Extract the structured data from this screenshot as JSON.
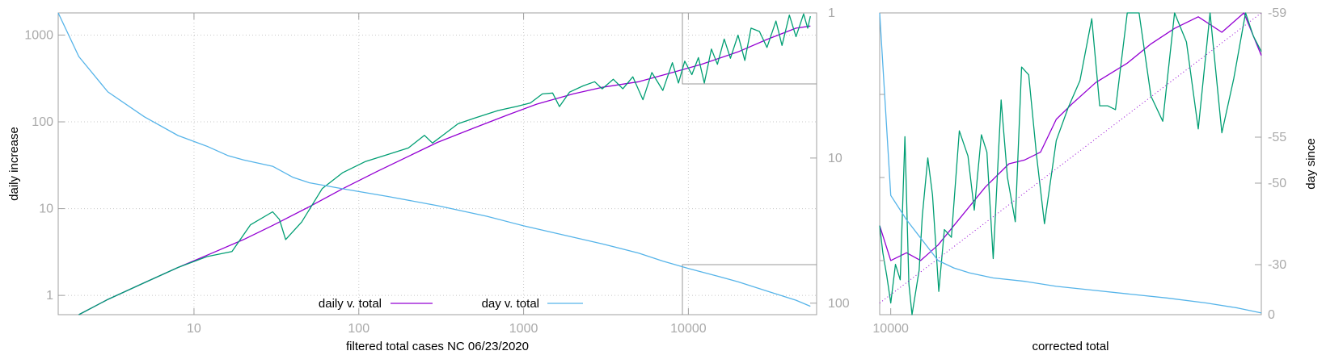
{
  "colors": {
    "daily_v_total": "#9400d3",
    "day_v_total": "#56b4e9",
    "raw_daily": "#009e73",
    "fit": "#9400d3",
    "axis": "#a0a0a0",
    "grid": "#c8c8c8",
    "tick_text": "#a9a9a9"
  },
  "chart_data": [
    {
      "type": "line",
      "xlabel": "filtered total cases NC 06/23/2020",
      "ylabel": "daily increase",
      "y2label": "",
      "x_scale": "log",
      "y_scale": "log",
      "y2_scale": "log",
      "y2_reversed": true,
      "xlim": [
        1.5,
        60000
      ],
      "ylim": [
        0.6,
        1800
      ],
      "y2lim": [
        1,
        120
      ],
      "grid": true,
      "legend_position": "bottom-center",
      "x_ticks": [
        {
          "v": 10,
          "label": "10"
        },
        {
          "v": 100,
          "label": "100"
        },
        {
          "v": 1000,
          "label": "1000"
        },
        {
          "v": 10000,
          "label": "10000"
        }
      ],
      "y_ticks": [
        {
          "v": 1,
          "label": "1"
        },
        {
          "v": 10,
          "label": "10"
        },
        {
          "v": 100,
          "label": "100"
        },
        {
          "v": 1000,
          "label": "1000"
        }
      ],
      "y2_ticks": [
        {
          "v": 1,
          "label": "1"
        },
        {
          "v": 10,
          "label": "10"
        },
        {
          "v": 100,
          "label": "100"
        }
      ],
      "series": [
        {
          "name": "daily v. total",
          "axis": "y",
          "points": [
            [
              2,
              0.6
            ],
            [
              3,
              0.9
            ],
            [
              5,
              1.4
            ],
            [
              8,
              2.1
            ],
            [
              13,
              3.1
            ],
            [
              20,
              4.4
            ],
            [
              30,
              6.4
            ],
            [
              50,
              10.5
            ],
            [
              80,
              17
            ],
            [
              130,
              27
            ],
            [
              200,
              40
            ],
            [
              300,
              58
            ],
            [
              500,
              85
            ],
            [
              800,
              120
            ],
            [
              1200,
              160
            ],
            [
              2000,
              210
            ],
            [
              3000,
              250
            ],
            [
              5000,
              290
            ],
            [
              8000,
              370
            ],
            [
              12000,
              460
            ],
            [
              20000,
              640
            ],
            [
              30000,
              890
            ],
            [
              45000,
              1200
            ],
            [
              55000,
              1270
            ]
          ]
        },
        {
          "name": "",
          "axis": "y",
          "points": [
            [
              2,
              0.6
            ],
            [
              3,
              0.9
            ],
            [
              5,
              1.4
            ],
            [
              8,
              2.1
            ],
            [
              12,
              2.8
            ],
            [
              17,
              3.2
            ],
            [
              22,
              6.5
            ],
            [
              30,
              9.2
            ],
            [
              33,
              7.5
            ],
            [
              36,
              4.4
            ],
            [
              45,
              7
            ],
            [
              60,
              17
            ],
            [
              80,
              26
            ],
            [
              110,
              35
            ],
            [
              150,
              42
            ],
            [
              200,
              50
            ],
            [
              250,
              70
            ],
            [
              280,
              57
            ],
            [
              330,
              72
            ],
            [
              400,
              95
            ],
            [
              500,
              110
            ],
            [
              700,
              135
            ],
            [
              900,
              150
            ],
            [
              1100,
              165
            ],
            [
              1300,
              210
            ],
            [
              1500,
              215
            ],
            [
              1650,
              150
            ],
            [
              1900,
              220
            ],
            [
              2300,
              260
            ],
            [
              2700,
              290
            ],
            [
              3000,
              240
            ],
            [
              3500,
              310
            ],
            [
              4000,
              240
            ],
            [
              4600,
              330
            ],
            [
              5300,
              180
            ],
            [
              6000,
              370
            ],
            [
              7000,
              230
            ],
            [
              8000,
              480
            ],
            [
              8700,
              280
            ],
            [
              9500,
              500
            ],
            [
              10500,
              350
            ],
            [
              11500,
              550
            ],
            [
              12500,
              280
            ],
            [
              13800,
              690
            ],
            [
              15000,
              460
            ],
            [
              16500,
              900
            ],
            [
              18000,
              540
            ],
            [
              20000,
              1000
            ],
            [
              22000,
              510
            ],
            [
              24000,
              1200
            ],
            [
              27000,
              1100
            ],
            [
              30000,
              720
            ],
            [
              34000,
              1450
            ],
            [
              37000,
              760
            ],
            [
              41000,
              1700
            ],
            [
              45000,
              960
            ],
            [
              50000,
              1750
            ],
            [
              53000,
              1200
            ],
            [
              55000,
              1650
            ]
          ]
        },
        {
          "name": "day v. total",
          "axis": "y2",
          "points": [
            [
              1.5,
              1
            ],
            [
              2,
              2
            ],
            [
              3,
              3.5
            ],
            [
              5,
              5.2
            ],
            [
              8,
              7
            ],
            [
              12,
              8.3
            ],
            [
              16,
              9.6
            ],
            [
              20,
              10.3
            ],
            [
              30,
              11.4
            ],
            [
              40,
              13.6
            ],
            [
              50,
              14.8
            ],
            [
              80,
              16.3
            ],
            [
              150,
              18.4
            ],
            [
              300,
              21.3
            ],
            [
              600,
              25.2
            ],
            [
              1000,
              29.3
            ],
            [
              2000,
              35.1
            ],
            [
              3000,
              39
            ],
            [
              5000,
              45.2
            ],
            [
              7000,
              51.3
            ],
            [
              10000,
              57.7
            ],
            [
              15000,
              65.1
            ],
            [
              20000,
              71.3
            ],
            [
              30000,
              82.6
            ],
            [
              45000,
              95.4
            ],
            [
              55000,
              105
            ]
          ]
        }
      ]
    },
    {
      "type": "line",
      "xlabel": "corrected total",
      "ylabel": "",
      "y2label": "day since",
      "x_scale": "linear",
      "xlim": [
        8600,
        57000
      ],
      "ylim": [
        240,
        1800
      ],
      "y2lim": [
        -59,
        0
      ],
      "grid": false,
      "x_ticks": [
        {
          "v": 10000,
          "label": "10000"
        }
      ],
      "y2_ticks": [
        {
          "v": -59,
          "label": "-59"
        },
        {
          "v": -55,
          "label": "-55"
        },
        {
          "v": -50,
          "label": "-50"
        },
        {
          "v": -30,
          "label": "-30"
        },
        {
          "v": 0,
          "label": "0"
        }
      ],
      "series": [
        {
          "name": "",
          "axis": "y",
          "points": [
            [
              8600,
              700
            ],
            [
              10000,
              520
            ],
            [
              12000,
              560
            ],
            [
              13800,
              520
            ],
            [
              16000,
              600
            ],
            [
              18000,
              700
            ],
            [
              22000,
              900
            ],
            [
              25000,
              1020
            ],
            [
              27000,
              1040
            ],
            [
              29000,
              1080
            ],
            [
              31000,
              1250
            ],
            [
              33000,
              1330
            ],
            [
              36000,
              1440
            ],
            [
              40000,
              1540
            ],
            [
              43000,
              1640
            ],
            [
              46000,
              1720
            ],
            [
              49000,
              1780
            ],
            [
              52000,
              1700
            ],
            [
              54800,
              1820
            ],
            [
              57000,
              1580
            ]
          ]
        },
        {
          "name": "",
          "axis": "y",
          "points": [
            [
              8600,
              700
            ],
            [
              9000,
              560
            ],
            [
              9500,
              440
            ],
            [
              10000,
              300
            ],
            [
              10600,
              500
            ],
            [
              11200,
              420
            ],
            [
              11800,
              1160
            ],
            [
              12300,
              400
            ],
            [
              12700,
              200
            ],
            [
              13600,
              470
            ],
            [
              14000,
              750
            ],
            [
              14700,
              1050
            ],
            [
              15300,
              860
            ],
            [
              16100,
              360
            ],
            [
              16800,
              680
            ],
            [
              17700,
              640
            ],
            [
              18700,
              1190
            ],
            [
              19800,
              1060
            ],
            [
              20600,
              780
            ],
            [
              21500,
              1170
            ],
            [
              22200,
              1080
            ],
            [
              23000,
              530
            ],
            [
              24000,
              1350
            ],
            [
              24800,
              950
            ],
            [
              25800,
              720
            ],
            [
              26600,
              1520
            ],
            [
              27500,
              1480
            ],
            [
              28500,
              1060
            ],
            [
              29500,
              710
            ],
            [
              31000,
              1140
            ],
            [
              32500,
              1310
            ],
            [
              34000,
              1450
            ],
            [
              35500,
              1770
            ],
            [
              36500,
              1320
            ],
            [
              37500,
              1320
            ],
            [
              38500,
              1300
            ],
            [
              40000,
              2080
            ],
            [
              41500,
              1920
            ],
            [
              43000,
              1370
            ],
            [
              44500,
              1240
            ],
            [
              46000,
              2320
            ],
            [
              47500,
              1650
            ],
            [
              49000,
              1200
            ],
            [
              50500,
              2130
            ],
            [
              52000,
              1180
            ],
            [
              53500,
              1460
            ],
            [
              55000,
              2100
            ],
            [
              56000,
              1680
            ],
            [
              57000,
              1600
            ]
          ]
        },
        {
          "name": "",
          "axis": "y",
          "style": "dotted",
          "points": [
            [
              8600,
              300
            ],
            [
              57000,
              1980
            ]
          ]
        },
        {
          "name": "",
          "axis": "y2",
          "points": [
            [
              8600,
              -59
            ],
            [
              10000,
              -47
            ],
            [
              12000,
              -41
            ],
            [
              14000,
              -36
            ],
            [
              16000,
              -31
            ],
            [
              18000,
              -28
            ],
            [
              20000,
              -25
            ],
            [
              23000,
              -22
            ],
            [
              27000,
              -20
            ],
            [
              31000,
              -17
            ],
            [
              35000,
              -15
            ],
            [
              40000,
              -12.5
            ],
            [
              45000,
              -10
            ],
            [
              50000,
              -7
            ],
            [
              54000,
              -4
            ],
            [
              57000,
              -1
            ]
          ]
        }
      ]
    }
  ]
}
